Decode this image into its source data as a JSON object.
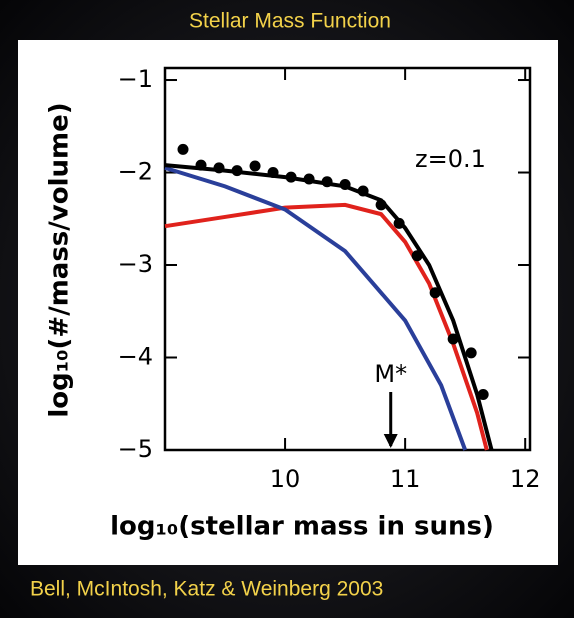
{
  "chart_data": {
    "type": "line",
    "title": "Stellar Mass Function",
    "source": "Bell, McIntosh, Katz & Weinberg 2003",
    "x_label": "log₁₀(stellar mass in suns)",
    "y_label": "log₁₀(#/mass/volume)",
    "annotations": [
      "z=0.1",
      "M*"
    ],
    "marker_x": 10.88,
    "xlim": [
      9.0,
      12.04
    ],
    "ylim": [
      -5,
      -0.87
    ],
    "xticks": [
      10,
      11,
      12
    ],
    "yticks": [
      {
        "value": -1,
        "label": "−1"
      },
      {
        "value": -2,
        "label": "−2"
      },
      {
        "value": -3,
        "label": "−3"
      },
      {
        "value": -4,
        "label": "−4"
      },
      {
        "value": -5,
        "label": "−5"
      }
    ],
    "series": [
      {
        "color": "#e0221c",
        "x": [
          9.0,
          9.5,
          10.0,
          10.5,
          10.8,
          11.0,
          11.2,
          11.4,
          11.6,
          11.68
        ],
        "values": [
          -2.58,
          -2.48,
          -2.38,
          -2.35,
          -2.45,
          -2.75,
          -3.2,
          -3.85,
          -4.6,
          -5
        ]
      },
      {
        "color": "#2a3f9a",
        "x": [
          9.0,
          9.5,
          10.0,
          10.5,
          11.0,
          11.3,
          11.5
        ],
        "values": [
          -1.95,
          -2.15,
          -2.4,
          -2.85,
          -3.6,
          -4.3,
          -5
        ]
      },
      {
        "color": "#000000",
        "x": [
          9.0,
          9.5,
          10.0,
          10.5,
          10.8,
          11.0,
          11.2,
          11.4,
          11.6,
          11.72
        ],
        "values": [
          -1.92,
          -1.98,
          -2.05,
          -2.15,
          -2.3,
          -2.6,
          -3.0,
          -3.6,
          -4.4,
          -5
        ]
      },
      {
        "color": "#000000",
        "marker": true,
        "x": [
          9.15,
          9.3,
          9.45,
          9.6,
          9.75,
          9.9,
          10.05,
          10.2,
          10.35,
          10.5,
          10.65,
          10.8,
          10.95,
          11.1,
          11.25,
          11.4,
          11.55,
          11.65
        ],
        "values": [
          -1.75,
          -1.92,
          -1.95,
          -1.98,
          -1.93,
          -2.0,
          -2.05,
          -2.07,
          -2.1,
          -2.13,
          -2.2,
          -2.35,
          -2.55,
          -2.9,
          -3.3,
          -3.8,
          -3.95,
          -4.4
        ]
      }
    ]
  }
}
